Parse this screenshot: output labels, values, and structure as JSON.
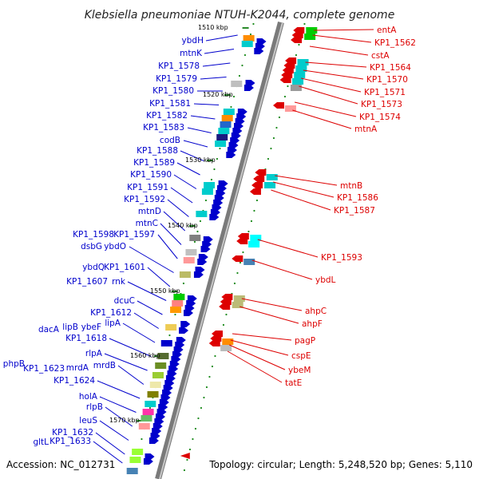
{
  "title": "Klebsiella pneumoniae NTUH-K2044, complete genome",
  "footer": {
    "accession": "Accession: NC_012731",
    "topology": "Topology: circular; Length: 5,248,520 bp; Genes: 5,110"
  },
  "scale": [
    "1510 kbp",
    "1520 kbp",
    "1530 kbp",
    "1540 kbp",
    "1550 kbp",
    "1560 kbp",
    "1570 kbp"
  ],
  "colors": {
    "forward": "#0000cc",
    "reverse": "#dd0000",
    "backbone": "#808080",
    "tick": "#2a8a2a"
  },
  "left_labels": [
    "ybdH",
    "mtnK",
    "KP1_1578",
    "KP1_1579",
    "KP1_1580",
    "KP1_1581",
    "KP1_1582",
    "KP1_1583",
    "codB",
    "KP1_1588",
    "KP1_1589",
    "KP1_1590",
    "KP1_1591",
    "KP1_1592",
    "mtnD",
    "mtnC",
    "KP1_1598",
    "KP1_1597",
    "dsbG",
    "ybdO",
    "ybdQ",
    "KP1_1601",
    "KP1_1607",
    "rnk",
    "dcuC",
    "KP1_1612",
    "lipA",
    "lipB",
    "ybeF",
    "dacA",
    "KP1_1618",
    "rlpA",
    "mrdB",
    "phpB",
    "KP1_1623",
    "mrdA",
    "KP1_1624",
    "holA",
    "rlpB",
    "leuS",
    "KP1_1632",
    "gltL",
    "KP1_1633"
  ],
  "right_labels": [
    "entA",
    "KP1_1562",
    "cstA",
    "KP1_1564",
    "KP1_1570",
    "KP1_1571",
    "KP1_1573",
    "KP1_1574",
    "mtnA",
    "mtnB",
    "KP1_1586",
    "KP1_1587",
    "KP1_1593",
    "ybdL",
    "ahpC",
    "ahpF",
    "pagP",
    "cspE",
    "ybeM",
    "tatE"
  ]
}
